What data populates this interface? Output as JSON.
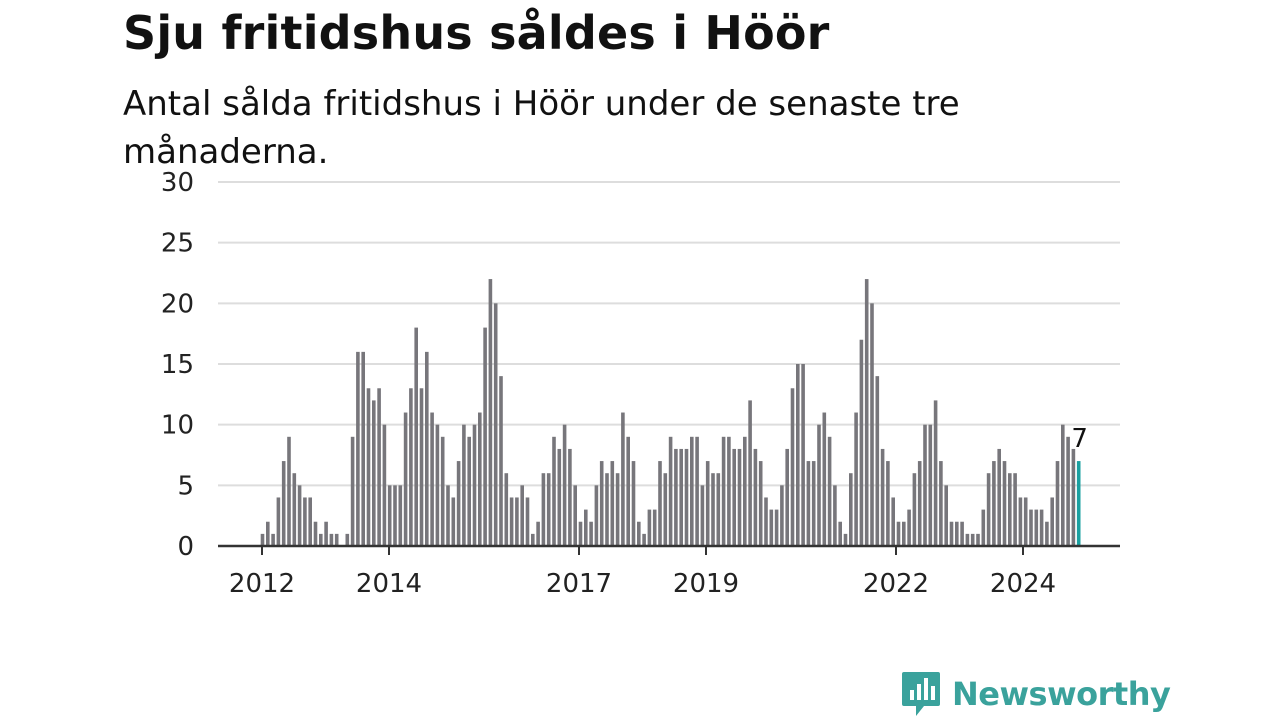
{
  "header": {
    "title": "Sju fritidshus såldes i Höör",
    "subtitle": "Antal sålda fritidshus i Höör under de senaste tre månaderna."
  },
  "brand": {
    "name": "Newsworthy"
  },
  "colors": {
    "bar": "#77767b",
    "highlight": "#1aa0a0",
    "grid": "#dddddd",
    "axis": "#333333",
    "brand": "#3aa29c"
  },
  "chart_data": {
    "type": "bar",
    "title": "Sju fritidshus såldes i Höör",
    "subtitle": "Antal sålda fritidshus i Höör under de senaste tre månaderna.",
    "xlabel": "",
    "ylabel": "",
    "ylim": [
      0,
      30
    ],
    "yticks": [
      "0",
      "5",
      "10",
      "15",
      "20",
      "25",
      "30"
    ],
    "xticks": [
      "2012",
      "2014",
      "2017",
      "2019",
      "2022",
      "2024"
    ],
    "grid": true,
    "legend": "none",
    "annotation": {
      "text": "7",
      "target": "last bar"
    },
    "values": [
      1,
      2,
      1,
      4,
      7,
      9,
      6,
      5,
      4,
      4,
      2,
      1,
      2,
      1,
      1,
      0,
      1,
      9,
      16,
      16,
      13,
      12,
      13,
      10,
      5,
      5,
      5,
      11,
      13,
      18,
      13,
      16,
      11,
      10,
      9,
      5,
      4,
      7,
      10,
      9,
      10,
      11,
      18,
      22,
      20,
      14,
      6,
      4,
      4,
      5,
      4,
      1,
      2,
      6,
      6,
      9,
      8,
      10,
      8,
      5,
      2,
      3,
      2,
      5,
      7,
      6,
      7,
      6,
      11,
      9,
      7,
      2,
      1,
      3,
      3,
      7,
      6,
      9,
      8,
      8,
      8,
      9,
      9,
      5,
      7,
      6,
      6,
      9,
      9,
      8,
      8,
      9,
      12,
      8,
      7,
      4,
      3,
      3,
      5,
      8,
      13,
      15,
      15,
      7,
      7,
      10,
      11,
      9,
      5,
      2,
      1,
      6,
      11,
      17,
      22,
      20,
      14,
      8,
      7,
      4,
      2,
      2,
      3,
      6,
      7,
      10,
      10,
      12,
      7,
      5,
      2,
      2,
      2,
      1,
      1,
      1,
      3,
      6,
      7,
      8,
      7,
      6,
      6,
      4,
      4,
      3,
      3,
      3,
      2,
      4,
      7,
      10,
      9,
      8,
      7
    ],
    "highlight_last": true
  }
}
